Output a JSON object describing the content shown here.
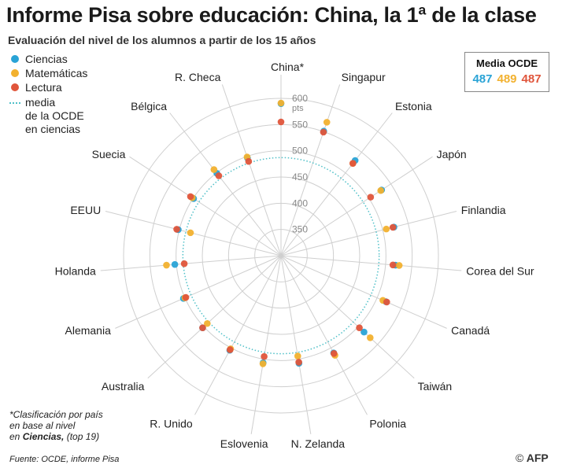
{
  "header": {
    "title": "Informe Pisa sobre educación: China, la 1ª de la clase",
    "subtitle": "Evaluación del nivel de los alumnos a partir de los 15 años"
  },
  "legend": {
    "items": [
      {
        "label": "Ciencias",
        "color": "#29a3d6"
      },
      {
        "label": "Matemáticas",
        "color": "#f2b12f"
      },
      {
        "label": "Lectura",
        "color": "#e0553b"
      }
    ],
    "mean_label_lines": [
      "media",
      "de la OCDE",
      "en ciencias"
    ],
    "mean_color": "#4fc0c8"
  },
  "oecd": {
    "title": "Media OCDE",
    "values": [
      "487",
      "489",
      "487"
    ]
  },
  "chart_data": {
    "type": "radar",
    "radial_ticks": [
      350,
      400,
      450,
      500,
      550,
      600
    ],
    "radial_range": [
      300,
      600
    ],
    "unit_label": "pts",
    "oecd_science_mean": 487,
    "categories": [
      "China*",
      "Singapur",
      "Estonia",
      "Japón",
      "Finlandia",
      "Corea del Sur",
      "Canadá",
      "Taiwán",
      "Polonia",
      "N. Zelanda",
      "Eslovenia",
      "R. Unido",
      "Australia",
      "Alemania",
      "Holanda",
      "EEUU",
      "Suecia",
      "Bélgica",
      "R. Checa"
    ],
    "series": [
      {
        "name": "Ciencias",
        "color": "#29a3d6",
        "values": [
          590,
          551,
          530,
          529,
          522,
          519,
          518,
          515,
          511,
          508,
          507,
          505,
          503,
          503,
          503,
          502,
          499,
          499,
          497
        ]
      },
      {
        "name": "Matemáticas",
        "color": "#f2b12f",
        "values": [
          591,
          569,
          523,
          527,
          507,
          526,
          512,
          531,
          516,
          494,
          509,
          502,
          491,
          500,
          519,
          478,
          502,
          508,
          499
        ]
      },
      {
        "name": "Lectura",
        "color": "#e0553b",
        "values": [
          555,
          549,
          523,
          504,
          520,
          514,
          520,
          503,
          512,
          506,
          495,
          504,
          503,
          498,
          485,
          505,
          506,
          493,
          490
        ]
      }
    ]
  },
  "footnote": {
    "line1": "*Clasificación por país",
    "line2": "en base al nivel",
    "line3_prefix": "en ",
    "line3_bold": "Ciencias,",
    "line3_suffix": " (top 19)"
  },
  "source": "Fuente: OCDE, informe Pisa",
  "credit": {
    "copyright": "©",
    "brand": "AFP"
  }
}
